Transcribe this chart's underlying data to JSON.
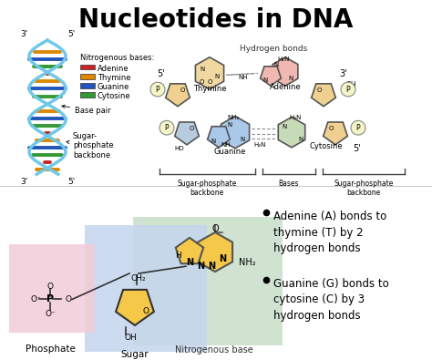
{
  "title": "Nucleotides in DNA",
  "title_fontsize": 20,
  "title_fontweight": "bold",
  "bg_color": "#ffffff",
  "legend_bases": {
    "title": "Nitrogenous bases:",
    "items": [
      {
        "label": "Adenine",
        "color": "#cc2222"
      },
      {
        "label": "Thymine",
        "color": "#dd8800"
      },
      {
        "label": "Guanine",
        "color": "#2255bb"
      },
      {
        "label": "Cytosine",
        "color": "#339933"
      }
    ]
  },
  "bullet_points": [
    "Adenine (A) bonds to\nthymine (T) by 2\nhydrogen bonds",
    "Guanine (G) bonds to\ncytosine (C) by 3\nhydrogen bonds"
  ],
  "phosphate_bg": "#f2ccd8",
  "sugar_bg": "#c5d5ee",
  "base_bg": "#c8dfc8",
  "phosphate_label": "Phosphate",
  "sugar_label": "Sugar",
  "base_label": "Nitrogenous base",
  "bottom_region_labels": [
    "Sugar-phosphate\nbackbone",
    "Bases",
    "Sugar-phosphate\nbackbone"
  ],
  "hydrogen_bonds_label": "Hydrogen bonds",
  "thymine_color": "#f0d8a0",
  "adenine_color": "#f0b8b0",
  "guanine_color": "#aac8e8",
  "cytosine_color": "#c8dbb8",
  "sugar_color": "#f0d090",
  "sugar_blue_color": "#b8cce0",
  "phosphate_color": "#e8e8c0",
  "bond_color": "#555555",
  "dashed_color": "#888888"
}
